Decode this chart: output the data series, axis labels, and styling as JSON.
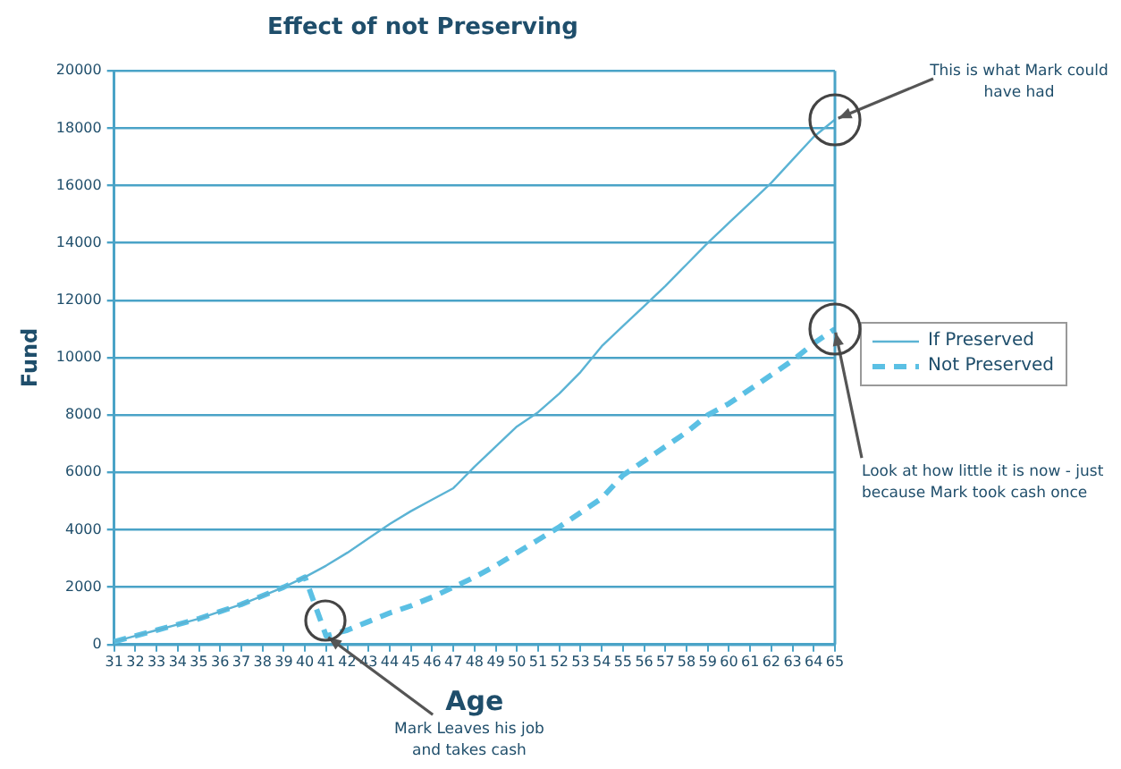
{
  "chart_data": {
    "type": "line",
    "title": "Effect of not Preserving",
    "xlabel": "Age",
    "ylabel": "Fund",
    "categories": [
      "31",
      "32",
      "33",
      "34",
      "35",
      "36",
      "37",
      "38",
      "39",
      "40",
      "41",
      "42",
      "43",
      "44",
      "45",
      "46",
      "47",
      "48",
      "49",
      "50",
      "51",
      "52",
      "53",
      "54",
      "55",
      "56",
      "57",
      "58",
      "59",
      "60",
      "61",
      "62",
      "63",
      "64",
      "65"
    ],
    "series": [
      {
        "name": "If Preserved",
        "color": "#5bb3d4",
        "line_style": "solid",
        "values": [
          100,
          300,
          500,
          700,
          900,
          1150,
          1400,
          1700,
          2000,
          2350,
          2750,
          3200,
          3700,
          4200,
          4650,
          5050,
          5450,
          6200,
          6900,
          7600,
          8100,
          8750,
          9500,
          10400,
          11100,
          11800,
          12500,
          13250,
          14000,
          14700,
          15400,
          16100,
          16900,
          17700,
          18300
        ]
      },
      {
        "name": "Not Preserved",
        "color": "#5bc0e4",
        "line_style": "dashed",
        "values": [
          100,
          300,
          500,
          700,
          900,
          1150,
          1400,
          1700,
          2000,
          2350,
          300,
          500,
          800,
          1100,
          1350,
          1650,
          2000,
          2350,
          2750,
          3200,
          3650,
          4100,
          4600,
          5100,
          5900,
          6400,
          6900,
          7400,
          8000,
          8400,
          8900,
          9400,
          9900,
          10500,
          11000
        ]
      }
    ],
    "ylim": [
      0,
      20000
    ],
    "yticks": [
      0,
      2000,
      4000,
      6000,
      8000,
      10000,
      12000,
      14000,
      16000,
      18000,
      20000
    ],
    "grid": "y",
    "legend": "right",
    "marker": "none",
    "annotations": [
      {
        "text": "This is what Mark could have had",
        "x": "65",
        "y": 18300
      },
      {
        "text": "Look at how little it is now - just because Mark took cash once",
        "x": "65",
        "y": 11000
      },
      {
        "text": "Mark Leaves his job and takes cash",
        "x": "41",
        "y": 300
      }
    ]
  }
}
